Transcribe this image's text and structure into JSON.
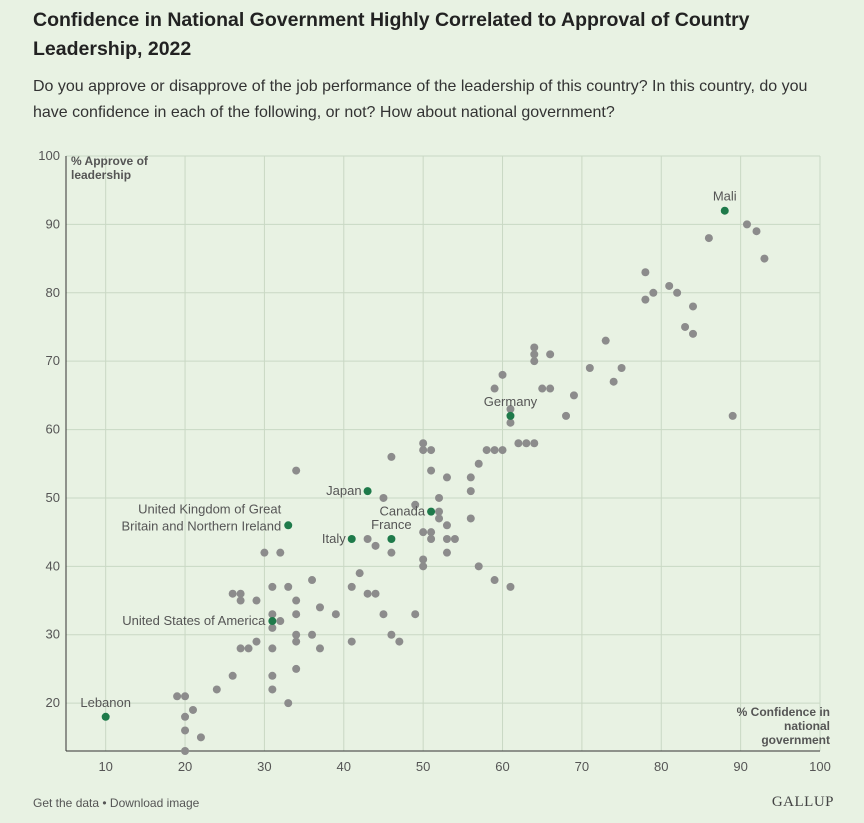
{
  "chart_data": {
    "type": "scatter",
    "title": "Confidence in National Government Highly Correlated to Approval of Country Leadership, 2022",
    "subtitle": "Do you approve or disapprove of the job performance of the leadership of this country? In this country, do you have confidence in each of the following, or not? How about national government?",
    "xlabel": "% Confidence in national government",
    "ylabel": "% Approve of leadership",
    "xlim": [
      5,
      100
    ],
    "ylim": [
      13,
      100
    ],
    "xticks": [
      10,
      20,
      30,
      40,
      50,
      60,
      70,
      80,
      90,
      100
    ],
    "yticks": [
      20,
      30,
      40,
      50,
      60,
      70,
      80,
      90,
      100
    ],
    "grid": true,
    "colors": {
      "highlight": "#1e7a4a",
      "other": "#8c8c8c"
    },
    "highlighted": [
      {
        "label": "Mali",
        "x": 88,
        "y": 92
      },
      {
        "label": "Germany",
        "x": 61,
        "y": 62
      },
      {
        "label": "Japan",
        "x": 43,
        "y": 51
      },
      {
        "label": "Canada",
        "x": 51,
        "y": 48
      },
      {
        "label": "France",
        "x": 46,
        "y": 44
      },
      {
        "label": "Italy",
        "x": 41,
        "y": 44
      },
      {
        "label": "United Kingdom of Great Britain and Northern Ireland",
        "x": 33,
        "y": 46
      },
      {
        "label": "United States of America",
        "x": 31,
        "y": 32
      },
      {
        "label": "Lebanon",
        "x": 10,
        "y": 18
      }
    ],
    "points": [
      [
        90.8,
        90
      ],
      [
        92,
        89
      ],
      [
        86,
        88
      ],
      [
        93,
        85
      ],
      [
        78,
        83
      ],
      [
        81,
        81
      ],
      [
        79,
        80
      ],
      [
        82,
        80
      ],
      [
        78,
        79
      ],
      [
        84,
        78
      ],
      [
        83,
        75
      ],
      [
        84,
        74
      ],
      [
        73,
        73
      ],
      [
        64,
        72
      ],
      [
        64,
        71
      ],
      [
        66,
        71
      ],
      [
        64,
        70
      ],
      [
        71,
        69
      ],
      [
        75,
        69
      ],
      [
        60,
        68
      ],
      [
        74,
        67
      ],
      [
        59,
        66
      ],
      [
        65,
        66
      ],
      [
        66,
        66
      ],
      [
        69,
        65
      ],
      [
        61,
        63
      ],
      [
        68,
        62
      ],
      [
        89,
        62
      ],
      [
        61,
        61
      ],
      [
        50,
        58
      ],
      [
        62,
        58
      ],
      [
        63,
        58
      ],
      [
        64,
        58
      ],
      [
        50,
        57
      ],
      [
        51,
        57
      ],
      [
        58,
        57
      ],
      [
        59,
        57
      ],
      [
        60,
        57
      ],
      [
        46,
        56
      ],
      [
        57,
        55
      ],
      [
        34,
        54
      ],
      [
        51,
        54
      ],
      [
        53,
        53
      ],
      [
        56,
        53
      ],
      [
        56,
        51
      ],
      [
        45,
        50
      ],
      [
        52,
        50
      ],
      [
        49,
        49
      ],
      [
        52,
        48
      ],
      [
        53,
        46
      ],
      [
        52,
        47
      ],
      [
        56,
        47
      ],
      [
        50,
        45
      ],
      [
        51,
        45
      ],
      [
        51,
        44
      ],
      [
        53,
        44
      ],
      [
        54,
        44
      ],
      [
        43,
        44
      ],
      [
        44,
        43
      ],
      [
        30,
        42
      ],
      [
        32,
        42
      ],
      [
        46,
        42
      ],
      [
        53,
        42
      ],
      [
        50,
        41
      ],
      [
        50,
        40
      ],
      [
        57,
        40
      ],
      [
        42,
        39
      ],
      [
        36,
        38
      ],
      [
        59,
        38
      ],
      [
        31,
        37
      ],
      [
        33,
        37
      ],
      [
        41,
        37
      ],
      [
        61,
        37
      ],
      [
        26,
        36
      ],
      [
        27,
        36
      ],
      [
        43,
        36
      ],
      [
        44,
        36
      ],
      [
        27,
        35
      ],
      [
        29,
        35
      ],
      [
        34,
        35
      ],
      [
        37,
        34
      ],
      [
        31,
        33
      ],
      [
        34,
        33
      ],
      [
        39,
        33
      ],
      [
        45,
        33
      ],
      [
        49,
        33
      ],
      [
        32,
        32
      ],
      [
        31,
        31
      ],
      [
        34,
        30
      ],
      [
        36,
        30
      ],
      [
        46,
        30
      ],
      [
        29,
        29
      ],
      [
        34,
        29
      ],
      [
        41,
        29
      ],
      [
        47,
        29
      ],
      [
        27,
        28
      ],
      [
        28,
        28
      ],
      [
        31,
        28
      ],
      [
        37,
        28
      ],
      [
        34,
        25
      ],
      [
        26,
        24
      ],
      [
        31,
        24
      ],
      [
        24,
        22
      ],
      [
        31,
        22
      ],
      [
        19,
        21
      ],
      [
        20,
        21
      ],
      [
        33,
        20
      ],
      [
        21,
        19
      ],
      [
        20,
        18
      ],
      [
        20,
        16
      ],
      [
        22,
        15
      ],
      [
        20,
        13
      ]
    ]
  },
  "footer": {
    "links": "Get the data • Download image",
    "brand": "GALLUP"
  }
}
